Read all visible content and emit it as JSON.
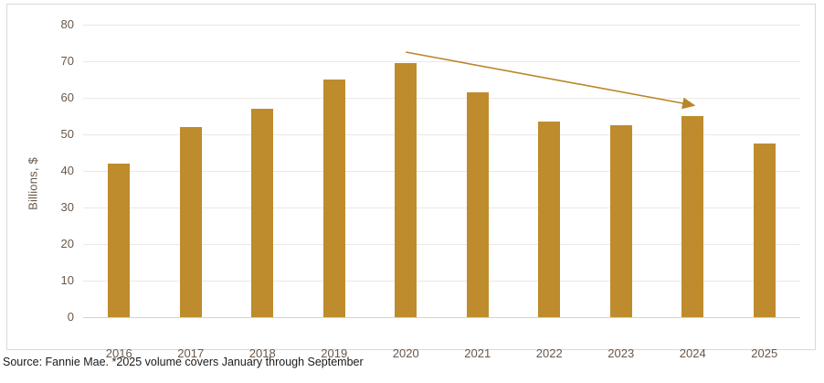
{
  "chart_data": {
    "type": "bar",
    "title": "",
    "categories": [
      "2016",
      "2017",
      "2018",
      "2019",
      "2020",
      "2021",
      "2022",
      "2023",
      "2024",
      "2025"
    ],
    "values": [
      42,
      52,
      57,
      65,
      69.5,
      61.5,
      53.5,
      52.5,
      55,
      47.5
    ],
    "xlabel": "",
    "ylabel": "Billions, $",
    "ylim": [
      0,
      80
    ],
    "yticks": [
      80,
      70,
      60,
      50,
      40,
      30,
      20,
      10,
      0
    ],
    "grid": "horizontal",
    "legend": "none",
    "annotation": {
      "type": "trend-arrow",
      "from": {
        "category": "2020",
        "value": 72.5
      },
      "to": {
        "category": "2024",
        "value": 58
      }
    }
  },
  "footer": {
    "source_note": "Source: Fannie Mae. *2025 volume covers January through September"
  },
  "colors": {
    "bar": "#BE8C2D",
    "arrow": "#B8872A",
    "axis_text": "#6A5748",
    "gridline": "#ECE8E6",
    "axis_line": "#D8D2CE",
    "chart_border": "#D9D9D9",
    "source_text": "#1A1A1A"
  }
}
